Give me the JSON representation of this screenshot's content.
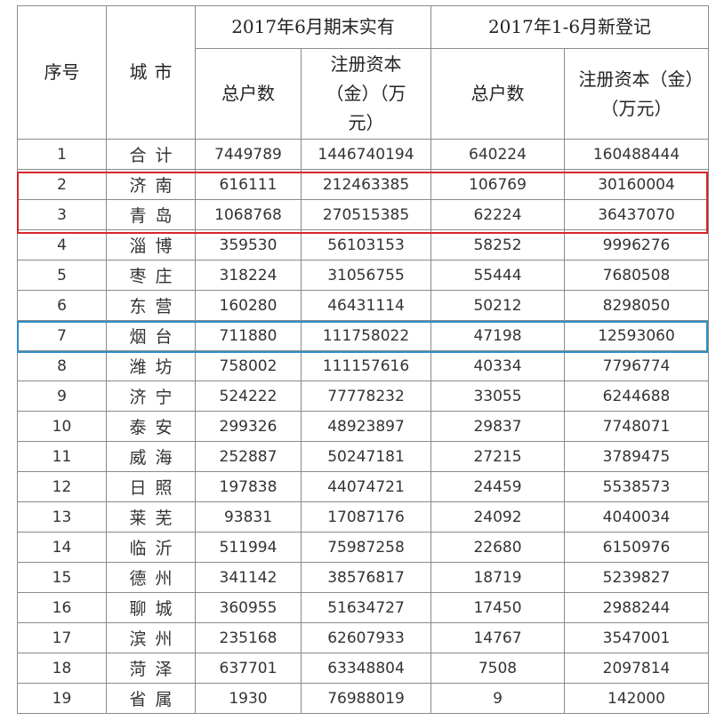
{
  "header": {
    "seq": "序号",
    "city": "城市",
    "group1": "2017年6月期末实有",
    "group2": "2017年1-6月新登记",
    "households": "总户数",
    "capital": "注册资本（金）（万元）"
  },
  "rows": [
    {
      "no": "1",
      "city": "合计",
      "h1": "7449789",
      "c1": "1446740194",
      "h2": "640224",
      "c2": "160488444"
    },
    {
      "no": "2",
      "city": "济南",
      "h1": "616111",
      "c1": "212463385",
      "h2": "106769",
      "c2": "30160004"
    },
    {
      "no": "3",
      "city": "青岛",
      "h1": "1068768",
      "c1": "270515385",
      "h2": "62224",
      "c2": "36437070"
    },
    {
      "no": "4",
      "city": "淄博",
      "h1": "359530",
      "c1": "56103153",
      "h2": "58252",
      "c2": "9996276"
    },
    {
      "no": "5",
      "city": "枣庄",
      "h1": "318224",
      "c1": "31056755",
      "h2": "55444",
      "c2": "7680508"
    },
    {
      "no": "6",
      "city": "东营",
      "h1": "160280",
      "c1": "46431114",
      "h2": "50212",
      "c2": "8298050"
    },
    {
      "no": "7",
      "city": "烟台",
      "h1": "711880",
      "c1": "111758022",
      "h2": "47198",
      "c2": "12593060"
    },
    {
      "no": "8",
      "city": "潍坊",
      "h1": "758002",
      "c1": "111157616",
      "h2": "40334",
      "c2": "7796774"
    },
    {
      "no": "9",
      "city": "济宁",
      "h1": "524222",
      "c1": "77778232",
      "h2": "33055",
      "c2": "6244688"
    },
    {
      "no": "10",
      "city": "泰安",
      "h1": "299326",
      "c1": "48923897",
      "h2": "29837",
      "c2": "7748071"
    },
    {
      "no": "11",
      "city": "威海",
      "h1": "252887",
      "c1": "50247181",
      "h2": "27215",
      "c2": "3789475"
    },
    {
      "no": "12",
      "city": "日照",
      "h1": "197838",
      "c1": "44074721",
      "h2": "24459",
      "c2": "5538573"
    },
    {
      "no": "13",
      "city": "莱芜",
      "h1": "93831",
      "c1": "17087176",
      "h2": "24092",
      "c2": "4040034"
    },
    {
      "no": "14",
      "city": "临沂",
      "h1": "511994",
      "c1": "75987258",
      "h2": "22680",
      "c2": "6150976"
    },
    {
      "no": "15",
      "city": "德州",
      "h1": "341142",
      "c1": "38576817",
      "h2": "18719",
      "c2": "5239827"
    },
    {
      "no": "16",
      "city": "聊城",
      "h1": "360955",
      "c1": "51634727",
      "h2": "17450",
      "c2": "2988244"
    },
    {
      "no": "17",
      "city": "滨州",
      "h1": "235168",
      "c1": "62607933",
      "h2": "14767",
      "c2": "3547001"
    },
    {
      "no": "18",
      "city": "菏泽",
      "h1": "637701",
      "c1": "63348804",
      "h2": "7508",
      "c2": "2097814"
    },
    {
      "no": "19",
      "city": "省属",
      "h1": "1930",
      "c1": "76988019",
      "h2": "9",
      "c2": "142000"
    }
  ],
  "highlight_colors": {
    "red": "#d7262b",
    "blue": "#2b8fc8"
  }
}
